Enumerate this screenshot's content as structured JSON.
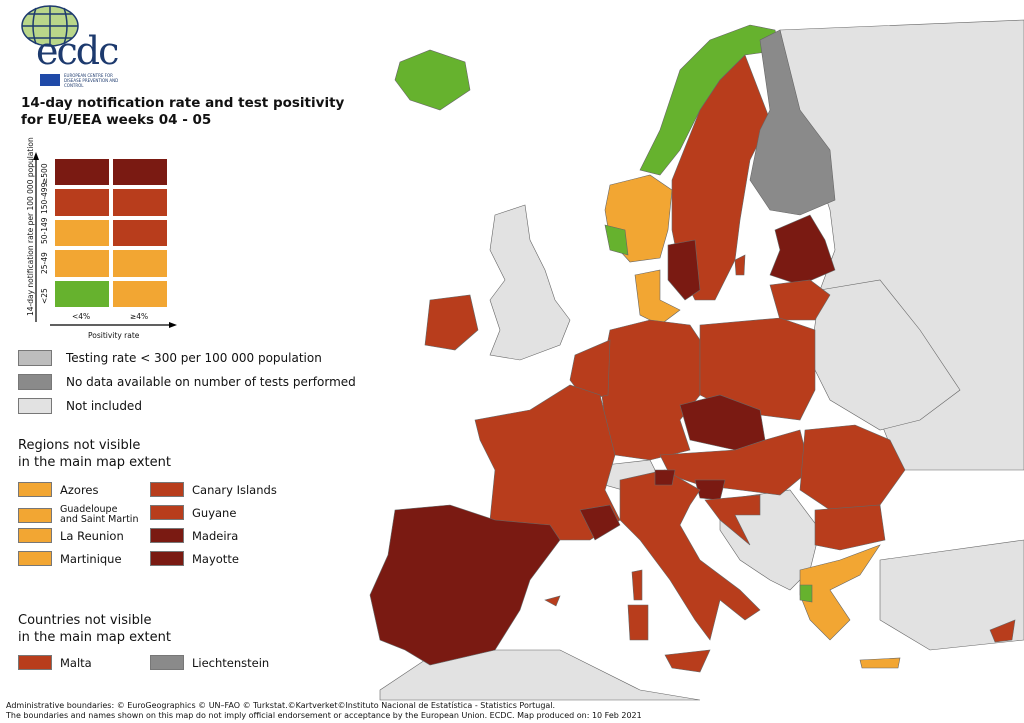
{
  "logo": {
    "text": "ecdc",
    "subtitle": "EUROPEAN CENTRE FOR DISEASE PREVENTION AND CONTROL"
  },
  "title": {
    "line1": "14-day notification rate and test positivity",
    "line2": "for EU/EEA weeks 04 - 05"
  },
  "colors": {
    "dark_red": "#7a1a12",
    "red": "#b83d1c",
    "orange": "#f2a633",
    "green": "#66b22e",
    "grey_testing": "#bdbdbd",
    "grey_nodata": "#8a8a8a",
    "not_included": "#e2e2e2"
  },
  "matrix": {
    "y_axis_label": "14-day notification rate per 100 000 population",
    "x_axis_label": "Positivity rate",
    "rows": [
      {
        "label": "≥500",
        "cells": [
          "dark_red",
          "dark_red"
        ]
      },
      {
        "label": "150-499",
        "cells": [
          "red",
          "red"
        ]
      },
      {
        "label": "50-149",
        "cells": [
          "orange",
          "red"
        ]
      },
      {
        "label": "25-49",
        "cells": [
          "orange",
          "orange"
        ]
      },
      {
        "label": "<25",
        "cells": [
          "green",
          "orange"
        ]
      }
    ],
    "columns": [
      "<4%",
      "≥4%"
    ]
  },
  "legend": [
    {
      "label": "Testing rate < 300 per 100 000 population",
      "color": "grey_testing"
    },
    {
      "label": "No data available on number of tests performed",
      "color": "grey_nodata"
    },
    {
      "label": "Not included",
      "color": "not_included"
    }
  ],
  "regions": {
    "heading1": "Regions not visible",
    "heading2": "in the main map extent",
    "items": [
      {
        "label": "Azores",
        "color": "orange"
      },
      {
        "label": "Guadeloupe\nand Saint Martin",
        "color": "orange"
      },
      {
        "label": "La Reunion",
        "color": "orange"
      },
      {
        "label": "Martinique",
        "color": "orange"
      },
      {
        "label": "Canary Islands",
        "color": "red"
      },
      {
        "label": "Guyane",
        "color": "red"
      },
      {
        "label": "Madeira",
        "color": "dark_red"
      },
      {
        "label": "Mayotte",
        "color": "dark_red"
      }
    ]
  },
  "countries_box": {
    "heading1": "Countries not visible",
    "heading2": "in the main map extent",
    "items": [
      {
        "label": "Malta",
        "color": "red"
      },
      {
        "label": "Liechtenstein",
        "color": "grey_nodata"
      }
    ]
  },
  "footer": {
    "line1": "Administrative boundaries: © EuroGeographics © UN–FAO © Turkstat.©Kartverket©Instituto Nacional de Estatística - Statistics Portugal.",
    "line2": "The boundaries and names shown on this map do not imply official endorsement or acceptance by the European Union. ECDC. Map produced on: 10 Feb 2021"
  }
}
